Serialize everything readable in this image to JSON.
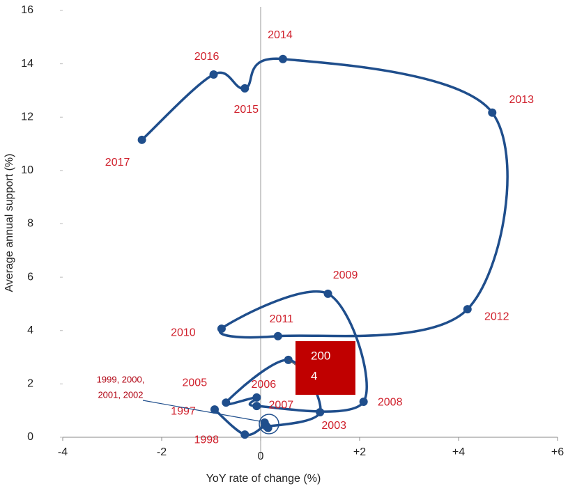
{
  "chart_data": {
    "type": "line",
    "xlabel": "YoY rate of change (%)",
    "ylabel": "Average annual support (%)",
    "xlim": [
      -4,
      6
    ],
    "ylim": [
      0,
      16
    ],
    "xticks": [
      -4,
      -2,
      0,
      {
        "value": 2,
        "label": "+2"
      },
      {
        "value": 4,
        "label": "+4"
      },
      {
        "value": 6,
        "label": "+6"
      }
    ],
    "yticks": [
      0,
      2,
      4,
      6,
      8,
      10,
      12,
      14,
      16
    ],
    "color": "#1f4e8c",
    "label_color": "#d0202c",
    "x": [
      -0.93,
      -0.32,
      0.1,
      0.15,
      0.08,
      0.12,
      1.2,
      0.56,
      -0.7,
      -0.08,
      -0.08,
      2.08,
      1.36,
      -0.79,
      0.35,
      4.18,
      4.68,
      0.45,
      -0.32,
      -0.95,
      -2.4
    ],
    "y": [
      1.04,
      0.1,
      0.45,
      0.35,
      0.55,
      0.4,
      0.94,
      2.9,
      1.3,
      1.49,
      1.17,
      1.33,
      5.38,
      4.07,
      3.79,
      4.8,
      12.17,
      14.18,
      13.08,
      13.6,
      11.15
    ],
    "point_labels": [
      "1997",
      "1998",
      null,
      null,
      null,
      null,
      "2003",
      null,
      "2005",
      "2006",
      "2007",
      "2008",
      "2009",
      "2010",
      "2011",
      "2012",
      "2013",
      "2014",
      "2015",
      "2016",
      "2017"
    ],
    "annotations": [
      {
        "lines": [
          "1999, 2000,",
          "2001, 2002"
        ]
      },
      {
        "lines": [
          "200",
          "4"
        ]
      }
    ]
  }
}
